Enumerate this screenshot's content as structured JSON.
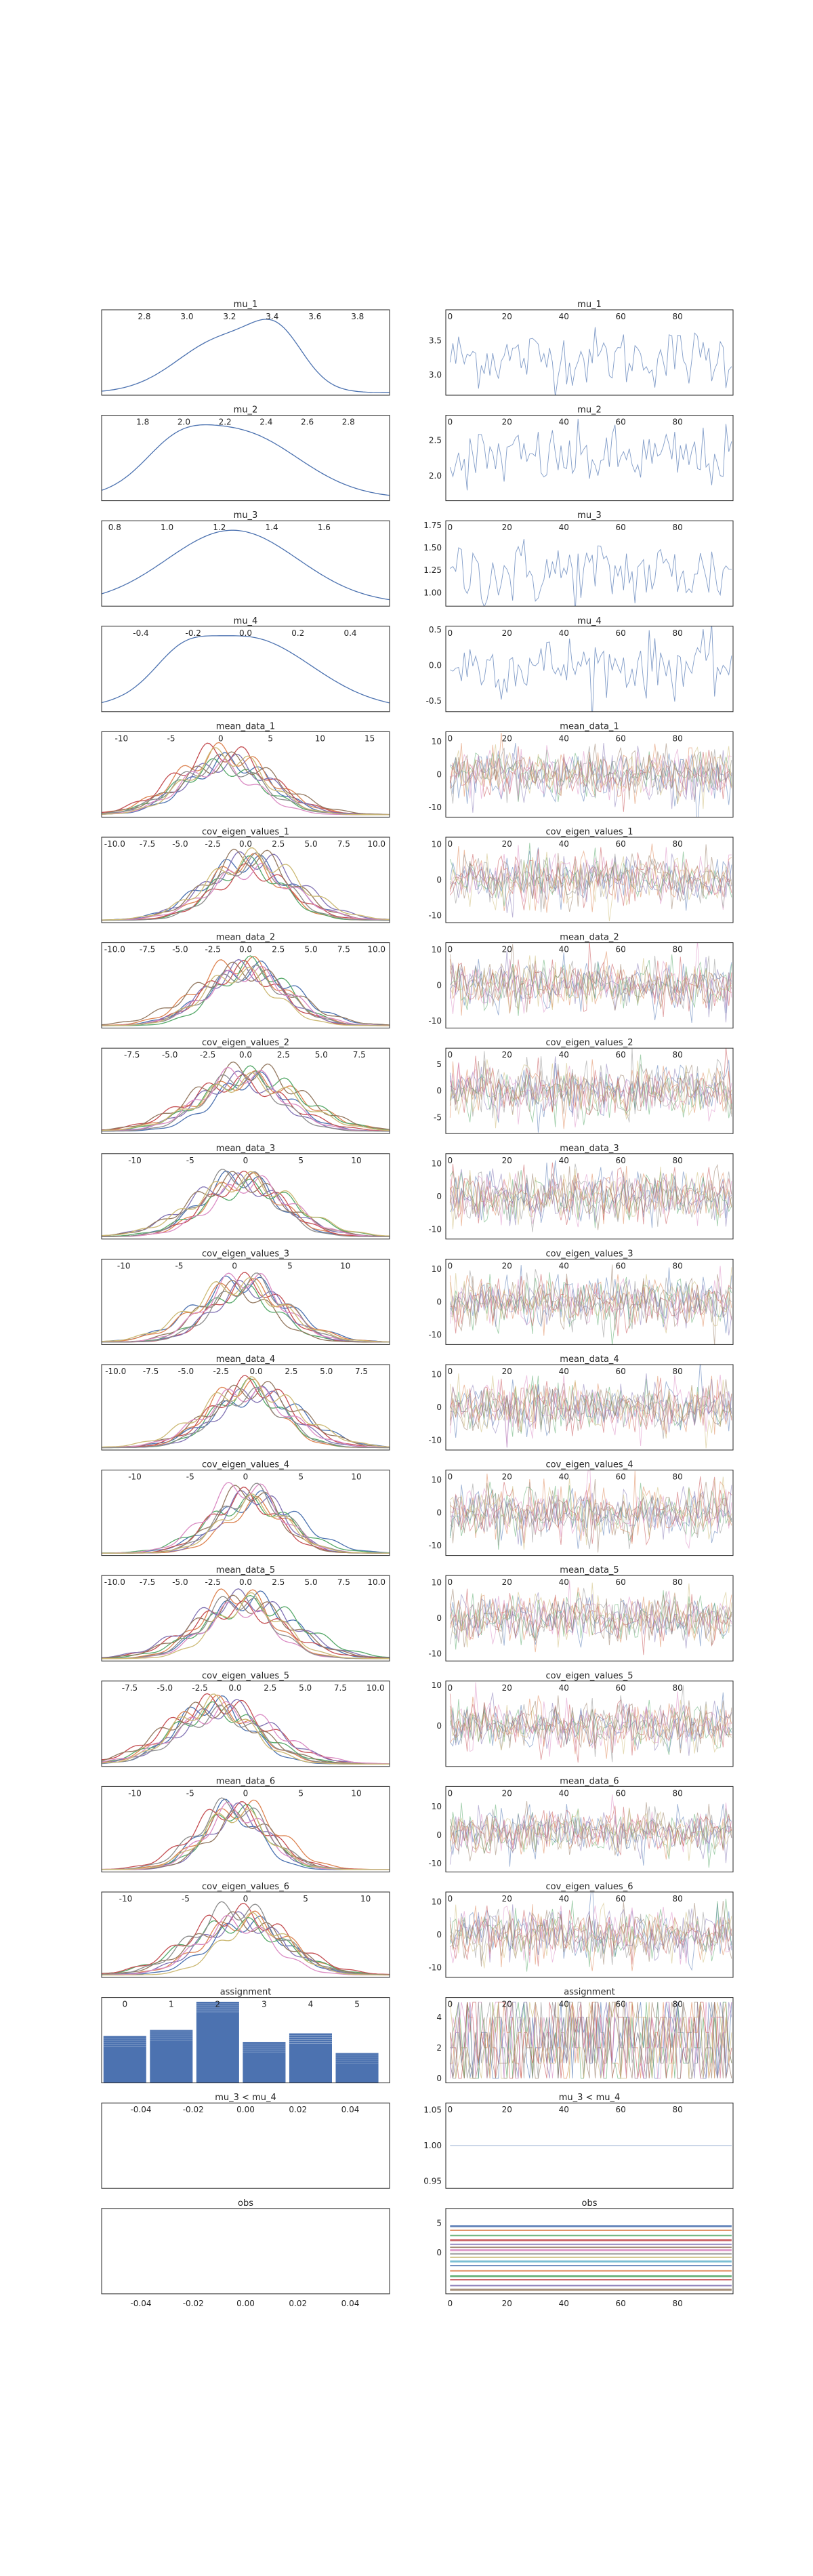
{
  "chart_data": [
    {
      "type": "line",
      "chart": "density",
      "title": "mu_1",
      "xticks": [
        "2.8",
        "3.0",
        "3.2",
        "3.4",
        "3.6",
        "3.8"
      ],
      "xlim": [
        2.6,
        3.95
      ],
      "n_chains": 1,
      "peaks": [
        [
          3.18,
          0.22,
          1.0
        ],
        [
          3.43,
          0.12,
          0.75
        ]
      ]
    },
    {
      "type": "line",
      "chart": "trace",
      "title": "mu_1",
      "yticks": [
        "3.5",
        "3.0"
      ],
      "xticks": [
        "0",
        "20",
        "40",
        "60",
        "80"
      ],
      "ylim": [
        2.7,
        3.95
      ],
      "n_chains": 1,
      "mean": 3.25,
      "sd": 0.22
    },
    {
      "type": "line",
      "chart": "density",
      "title": "mu_2",
      "xticks": [
        "1.8",
        "2.0",
        "2.2",
        "2.4",
        "2.6",
        "2.8"
      ],
      "xlim": [
        1.6,
        3.0
      ],
      "n_chains": 1,
      "peaks": [
        [
          2.25,
          0.3,
          1.0
        ],
        [
          1.95,
          0.15,
          0.35
        ]
      ]
    },
    {
      "type": "line",
      "chart": "trace",
      "title": "mu_2",
      "yticks": [
        "2.5",
        "2.0"
      ],
      "xticks": [
        "0",
        "20",
        "40",
        "60",
        "80"
      ],
      "ylim": [
        1.65,
        2.85
      ],
      "n_chains": 1,
      "mean": 2.25,
      "sd": 0.22
    },
    {
      "type": "line",
      "chart": "density",
      "title": "mu_3",
      "xticks": [
        "0.8",
        "1.0",
        "1.2",
        "1.4",
        "1.6"
      ],
      "xlim": [
        0.75,
        1.85
      ],
      "n_chains": 1,
      "peaks": [
        [
          1.25,
          0.25,
          1.0
        ]
      ]
    },
    {
      "type": "line",
      "chart": "trace",
      "title": "mu_3",
      "yticks": [
        "1.75",
        "1.50",
        "1.25",
        "1.00"
      ],
      "xticks": [
        "0",
        "20",
        "40",
        "60",
        "80"
      ],
      "ylim": [
        0.85,
        1.8
      ],
      "n_chains": 1,
      "mean": 1.22,
      "sd": 0.2
    },
    {
      "type": "line",
      "chart": "density",
      "title": "mu_4",
      "xticks": [
        "-0.4",
        "-0.2",
        "0.0",
        "0.2",
        "0.4"
      ],
      "xlim": [
        -0.55,
        0.55
      ],
      "n_chains": 1,
      "peaks": [
        [
          0.0,
          0.25,
          1.0
        ],
        [
          -0.25,
          0.1,
          0.3
        ]
      ]
    },
    {
      "type": "line",
      "chart": "trace",
      "title": "mu_4",
      "yticks": [
        "0.5",
        "0.0",
        "-0.5"
      ],
      "xticks": [
        "0",
        "20",
        "40",
        "60",
        "80"
      ],
      "ylim": [
        -0.65,
        0.55
      ],
      "n_chains": 1,
      "mean": 0.0,
      "sd": 0.22
    },
    {
      "type": "line",
      "chart": "density",
      "title": "mean_data_1",
      "xticks": [
        "-10",
        "-5",
        "0",
        "5",
        "10",
        "15"
      ],
      "xlim": [
        -12,
        17
      ],
      "n_chains": 9,
      "peaks": [
        [
          0,
          4.5,
          1.0
        ]
      ]
    },
    {
      "type": "line",
      "chart": "trace",
      "title": "mean_data_1",
      "yticks": [
        "10",
        "0",
        "-10"
      ],
      "xticks": [
        "0",
        "20",
        "40",
        "60",
        "80"
      ],
      "ylim": [
        -13,
        13
      ],
      "n_chains": 9,
      "mean": 0,
      "sd": 4
    },
    {
      "type": "line",
      "chart": "density",
      "title": "cov_eigen_values_1",
      "xticks": [
        "-10.0",
        "-7.5",
        "-5.0",
        "-2.5",
        "0.0",
        "2.5",
        "5.0",
        "7.5",
        "10.0"
      ],
      "xlim": [
        -11,
        11
      ],
      "n_chains": 9,
      "peaks": [
        [
          0,
          3.2,
          1.0
        ]
      ]
    },
    {
      "type": "line",
      "chart": "trace",
      "title": "cov_eigen_values_1",
      "yticks": [
        "10",
        "0",
        "-10"
      ],
      "xticks": [
        "0",
        "20",
        "40",
        "60",
        "80"
      ],
      "ylim": [
        -12,
        12
      ],
      "n_chains": 9,
      "mean": 0,
      "sd": 3.5
    },
    {
      "type": "line",
      "chart": "density",
      "title": "mean_data_2",
      "xticks": [
        "-10.0",
        "-7.5",
        "-5.0",
        "-2.5",
        "0.0",
        "2.5",
        "5.0",
        "7.5",
        "10.0"
      ],
      "xlim": [
        -11,
        11
      ],
      "n_chains": 9,
      "peaks": [
        [
          0,
          3.2,
          1.0
        ]
      ]
    },
    {
      "type": "line",
      "chart": "trace",
      "title": "mean_data_2",
      "yticks": [
        "10",
        "0",
        "-10"
      ],
      "xticks": [
        "0",
        "20",
        "40",
        "60",
        "80"
      ],
      "ylim": [
        -12,
        12
      ],
      "n_chains": 9,
      "mean": 0,
      "sd": 3.5
    },
    {
      "type": "line",
      "chart": "density",
      "title": "cov_eigen_values_2",
      "xticks": [
        "-7.5",
        "-5.0",
        "-2.5",
        "0.0",
        "2.5",
        "5.0",
        "7.5"
      ],
      "xlim": [
        -9.5,
        9.5
      ],
      "n_chains": 9,
      "peaks": [
        [
          0,
          3.0,
          1.0
        ]
      ]
    },
    {
      "type": "line",
      "chart": "trace",
      "title": "cov_eigen_values_2",
      "yticks": [
        "5",
        "0",
        "-5"
      ],
      "xticks": [
        "0",
        "20",
        "40",
        "60",
        "80"
      ],
      "ylim": [
        -8,
        8
      ],
      "n_chains": 9,
      "mean": 0,
      "sd": 2.5
    },
    {
      "type": "line",
      "chart": "density",
      "title": "mean_data_3",
      "xticks": [
        "-10",
        "-5",
        "0",
        "5",
        "10"
      ],
      "xlim": [
        -13,
        13
      ],
      "n_chains": 9,
      "peaks": [
        [
          0,
          3.8,
          1.0
        ]
      ]
    },
    {
      "type": "line",
      "chart": "trace",
      "title": "mean_data_3",
      "yticks": [
        "10",
        "0",
        "-10"
      ],
      "xticks": [
        "0",
        "20",
        "40",
        "60",
        "80"
      ],
      "ylim": [
        -13,
        13
      ],
      "n_chains": 9,
      "mean": 0,
      "sd": 4
    },
    {
      "type": "line",
      "chart": "density",
      "title": "cov_eigen_values_3",
      "xticks": [
        "-10",
        "-5",
        "0",
        "5",
        "10"
      ],
      "xlim": [
        -12,
        14
      ],
      "n_chains": 9,
      "peaks": [
        [
          1,
          3.8,
          1.0
        ]
      ]
    },
    {
      "type": "line",
      "chart": "trace",
      "title": "cov_eigen_values_3",
      "yticks": [
        "10",
        "0",
        "-10"
      ],
      "xticks": [
        "0",
        "20",
        "40",
        "60",
        "80"
      ],
      "ylim": [
        -13,
        13
      ],
      "n_chains": 9,
      "mean": 0,
      "sd": 4
    },
    {
      "type": "line",
      "chart": "density",
      "title": "mean_data_4",
      "xticks": [
        "-10.0",
        "-7.5",
        "-5.0",
        "-2.5",
        "0.0",
        "2.5",
        "5.0",
        "7.5"
      ],
      "xlim": [
        -11,
        9.5
      ],
      "n_chains": 9,
      "peaks": [
        [
          -0.5,
          3.0,
          1.0
        ]
      ]
    },
    {
      "type": "line",
      "chart": "trace",
      "title": "mean_data_4",
      "yticks": [
        "10",
        "0",
        "-10"
      ],
      "xticks": [
        "0",
        "20",
        "40",
        "60",
        "80"
      ],
      "ylim": [
        -13,
        13
      ],
      "n_chains": 9,
      "mean": 0,
      "sd": 4
    },
    {
      "type": "line",
      "chart": "density",
      "title": "cov_eigen_values_4",
      "xticks": [
        "-10",
        "-5",
        "0",
        "5",
        "10"
      ],
      "xlim": [
        -13,
        13
      ],
      "n_chains": 9,
      "peaks": [
        [
          0.5,
          3.5,
          1.0
        ]
      ]
    },
    {
      "type": "line",
      "chart": "trace",
      "title": "cov_eigen_values_4",
      "yticks": [
        "10",
        "0",
        "-10"
      ],
      "xticks": [
        "0",
        "20",
        "40",
        "60",
        "80"
      ],
      "ylim": [
        -13,
        13
      ],
      "n_chains": 9,
      "mean": 0,
      "sd": 4
    },
    {
      "type": "line",
      "chart": "density",
      "title": "mean_data_5",
      "xticks": [
        "-10.0",
        "-7.5",
        "-5.0",
        "-2.5",
        "0.0",
        "2.5",
        "5.0",
        "7.5",
        "10.0"
      ],
      "xlim": [
        -11,
        11
      ],
      "n_chains": 9,
      "peaks": [
        [
          0,
          3.2,
          1.0
        ]
      ]
    },
    {
      "type": "line",
      "chart": "trace",
      "title": "mean_data_5",
      "yticks": [
        "10",
        "0",
        "-10"
      ],
      "xticks": [
        "0",
        "20",
        "40",
        "60",
        "80"
      ],
      "ylim": [
        -12,
        12
      ],
      "n_chains": 9,
      "mean": 0,
      "sd": 3.5
    },
    {
      "type": "line",
      "chart": "density",
      "title": "cov_eigen_values_5",
      "xticks": [
        "-7.5",
        "-5.0",
        "-2.5",
        "0.0",
        "2.5",
        "5.0",
        "7.5",
        "10.0"
      ],
      "xlim": [
        -9.5,
        11
      ],
      "n_chains": 9,
      "peaks": [
        [
          -1,
          3.0,
          1.0
        ]
      ]
    },
    {
      "type": "line",
      "chart": "trace",
      "title": "cov_eigen_values_5",
      "yticks": [
        "10",
        "0"
      ],
      "xticks": [
        "0",
        "20",
        "40",
        "60",
        "80"
      ],
      "ylim": [
        -10,
        11
      ],
      "n_chains": 9,
      "mean": 0,
      "sd": 3
    },
    {
      "type": "line",
      "chart": "density",
      "title": "mean_data_6",
      "xticks": [
        "-10",
        "-5",
        "0",
        "5",
        "10"
      ],
      "xlim": [
        -13,
        13
      ],
      "n_chains": 9,
      "peaks": [
        [
          -1,
          3.0,
          1.0
        ]
      ]
    },
    {
      "type": "line",
      "chart": "trace",
      "title": "mean_data_6",
      "yticks": [
        "10",
        "0",
        "-10"
      ],
      "xticks": [
        "0",
        "20",
        "40",
        "60",
        "80"
      ],
      "ylim": [
        -13,
        17
      ],
      "n_chains": 9,
      "mean": 1,
      "sd": 4
    },
    {
      "type": "line",
      "chart": "density",
      "title": "cov_eigen_values_6",
      "xticks": [
        "-10",
        "-5",
        "0",
        "5",
        "10"
      ],
      "xlim": [
        -12,
        12
      ],
      "n_chains": 9,
      "peaks": [
        [
          0,
          3.5,
          1.0
        ]
      ]
    },
    {
      "type": "line",
      "chart": "trace",
      "title": "cov_eigen_values_6",
      "yticks": [
        "10",
        "0",
        "-10"
      ],
      "xticks": [
        "0",
        "20",
        "40",
        "60",
        "80"
      ],
      "ylim": [
        -13,
        13
      ],
      "n_chains": 9,
      "mean": 0,
      "sd": 4
    },
    {
      "type": "bar",
      "chart": "histogram",
      "title": "assignment",
      "xticks": [
        "0",
        "1",
        "2",
        "3",
        "4",
        "5"
      ],
      "xlim": [
        -0.5,
        5.7
      ],
      "categories": [
        "0",
        "1",
        "2",
        "3",
        "4",
        "5"
      ],
      "values": [
        0.55,
        0.62,
        0.95,
        0.48,
        0.58,
        0.35
      ],
      "ylim": [
        0,
        1.0
      ]
    },
    {
      "type": "line",
      "chart": "trace",
      "title": "assignment",
      "yticks": [
        "4",
        "2",
        "0"
      ],
      "xticks": [
        "0",
        "20",
        "40",
        "60",
        "80"
      ],
      "ylim": [
        -0.3,
        5.3
      ],
      "n_chains": 9,
      "discrete": true
    },
    {
      "type": "line",
      "chart": "empty",
      "title": "mu_3 < mu_4",
      "xticks": [
        "-0.04",
        "-0.02",
        "0.00",
        "0.02",
        "0.04"
      ],
      "xlim": [
        -0.055,
        0.055
      ]
    },
    {
      "type": "line",
      "chart": "trace",
      "title": "mu_3 < mu_4",
      "yticks": [
        "1.05",
        "1.00",
        "0.95"
      ],
      "xticks": [
        "0",
        "20",
        "40",
        "60",
        "80"
      ],
      "ylim": [
        0.94,
        1.06
      ],
      "n_chains": 1,
      "constant": 1.0
    },
    {
      "type": "line",
      "chart": "empty",
      "title": "obs",
      "xticks": [
        "-0.04",
        "-0.02",
        "0.00",
        "0.02",
        "0.04"
      ],
      "xlim": [
        -0.055,
        0.055
      ],
      "xticks_bottom": true
    },
    {
      "type": "line",
      "chart": "trace",
      "title": "obs",
      "yticks": [
        "5",
        "0"
      ],
      "xticks": [
        "0",
        "20",
        "40",
        "60",
        "80"
      ],
      "ylim": [
        -7,
        7.5
      ],
      "n_chains": 24,
      "constant_lines": [
        4.5,
        3.8,
        2.9,
        2.1,
        1.4,
        0.9,
        0.4,
        -0.2,
        -0.8,
        -1.5,
        -2.2,
        -3.1,
        -4.0,
        -4.6,
        -5.6,
        -6.3
      ],
      "xticks_bottom": true
    }
  ]
}
